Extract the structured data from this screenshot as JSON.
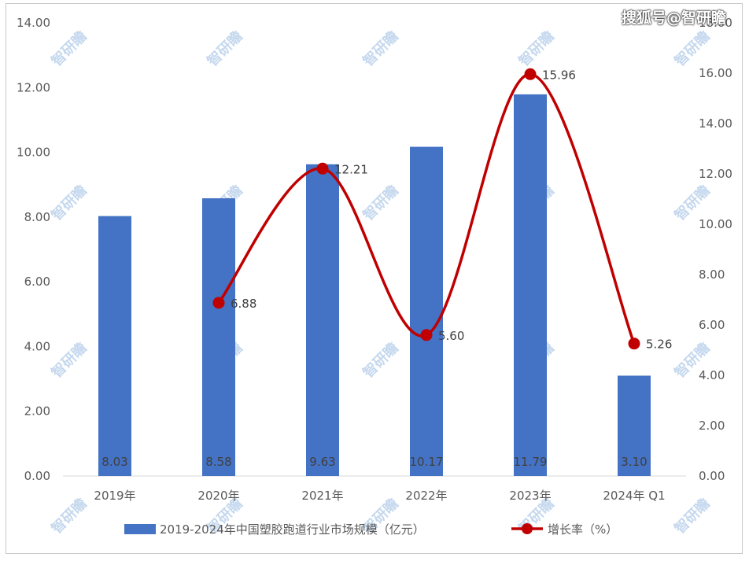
{
  "watermark": "搜狐号@智研瞻",
  "watermark_tile": "智研瞻",
  "chart_data": {
    "type": "bar",
    "categories": [
      "2019年",
      "2020年",
      "2021年",
      "2022年",
      "2023年",
      "2024年 Q1"
    ],
    "series": [
      {
        "name": "2019-2024年中国塑胶跑道行业市场规模（亿元）",
        "type": "bar",
        "axis": "left",
        "color": "#4472C4",
        "values": [
          8.03,
          8.58,
          9.63,
          10.17,
          11.79,
          3.1
        ],
        "labels": [
          "8.03",
          "8.58",
          "9.63",
          "10.17",
          "11.79",
          "3.10"
        ]
      },
      {
        "name": "增长率（%）",
        "type": "line",
        "axis": "right",
        "color": "#C00000",
        "smooth": true,
        "values": [
          null,
          6.88,
          12.21,
          5.6,
          15.96,
          5.26
        ],
        "labels": [
          "",
          "6.88",
          "12.21",
          "5.60",
          "15.96",
          "5.26"
        ]
      }
    ],
    "y_left": {
      "lim": [
        0,
        14
      ],
      "ticks": [
        "0.00",
        "2.00",
        "4.00",
        "6.00",
        "8.00",
        "10.00",
        "12.00",
        "14.00"
      ]
    },
    "y_right": {
      "lim": [
        0,
        18
      ],
      "ticks": [
        "0.00",
        "2.00",
        "4.00",
        "6.00",
        "8.00",
        "10.00",
        "12.00",
        "14.00",
        "16.00",
        "18.00"
      ]
    },
    "grid": false,
    "legend_position": "bottom"
  }
}
